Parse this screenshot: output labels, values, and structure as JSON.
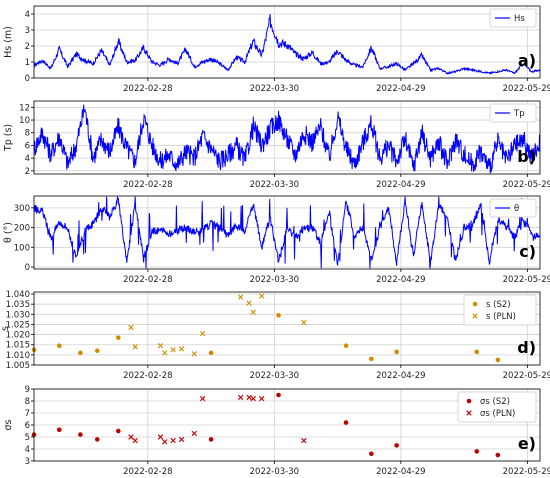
{
  "figure": {
    "colors": {
      "series": "#0000ff",
      "s2": "#d18c00",
      "pln": "#d18c00",
      "sigma_s2": "#c00000",
      "sigma_pln": "#c00000",
      "grid": "#d0d0d0"
    },
    "x_tick_labels": [
      "2022-02-28",
      "2022-03-30",
      "2022-04-29",
      "2022-05-29"
    ]
  },
  "chart_data": [
    {
      "type": "line",
      "panel_label": "a)",
      "ylabel": "Hs (m)",
      "legend": "Hs",
      "legend_placement": "top-right",
      "x_range": [
        "2022-02-01",
        "2022-06-01"
      ],
      "ylim": [
        0,
        4.5
      ],
      "yticks": [
        0,
        1,
        2,
        3,
        4
      ],
      "x": [
        "2022-02-01",
        "2022-02-03",
        "2022-02-05",
        "2022-02-07",
        "2022-02-09",
        "2022-02-11",
        "2022-02-13",
        "2022-02-15",
        "2022-02-17",
        "2022-02-19",
        "2022-02-21",
        "2022-02-23",
        "2022-02-25",
        "2022-02-27",
        "2022-03-01",
        "2022-03-03",
        "2022-03-05",
        "2022-03-07",
        "2022-03-09",
        "2022-03-11",
        "2022-03-13",
        "2022-03-15",
        "2022-03-17",
        "2022-03-19",
        "2022-03-21",
        "2022-03-23",
        "2022-03-25",
        "2022-03-27",
        "2022-03-29",
        "2022-03-31",
        "2022-04-02",
        "2022-04-04",
        "2022-04-06",
        "2022-04-08",
        "2022-04-10",
        "2022-04-12",
        "2022-04-14",
        "2022-04-16",
        "2022-04-18",
        "2022-04-20",
        "2022-04-22",
        "2022-04-24",
        "2022-04-26",
        "2022-04-28",
        "2022-04-30",
        "2022-05-02",
        "2022-05-04",
        "2022-05-06",
        "2022-05-08",
        "2022-05-10",
        "2022-05-12",
        "2022-05-14",
        "2022-05-16",
        "2022-05-18",
        "2022-05-20",
        "2022-05-22",
        "2022-05-24",
        "2022-05-26",
        "2022-05-28",
        "2022-05-30",
        "2022-06-01"
      ],
      "y": [
        0.8,
        1.1,
        0.6,
        1.8,
        0.7,
        1.5,
        1.1,
        0.9,
        1.7,
        0.8,
        2.3,
        1.0,
        1.1,
        1.9,
        1.0,
        0.8,
        1.2,
        0.9,
        1.8,
        0.7,
        1.0,
        1.2,
        0.9,
        0.5,
        1.3,
        1.0,
        2.3,
        1.4,
        3.6,
        2.2,
        2.1,
        1.5,
        1.2,
        1.6,
        0.9,
        1.0,
        1.7,
        1.1,
        0.8,
        0.7,
        1.9,
        0.6,
        0.7,
        0.9,
        0.5,
        0.9,
        1.4,
        0.5,
        0.6,
        0.3,
        0.4,
        0.6,
        0.5,
        0.4,
        0.3,
        0.4,
        0.5,
        0.3,
        0.9,
        0.4,
        0.5
      ]
    },
    {
      "type": "line",
      "panel_label": "b)",
      "ylabel": "Tp (s)",
      "legend": "Tp",
      "legend_placement": "top-right",
      "x_range": [
        "2022-02-01",
        "2022-06-01"
      ],
      "ylim": [
        1.5,
        13
      ],
      "yticks": [
        2,
        4,
        6,
        8,
        10,
        12
      ],
      "x": [
        "2022-02-01",
        "2022-02-03",
        "2022-02-05",
        "2022-02-07",
        "2022-02-09",
        "2022-02-11",
        "2022-02-13",
        "2022-02-15",
        "2022-02-17",
        "2022-02-19",
        "2022-02-21",
        "2022-02-23",
        "2022-02-25",
        "2022-02-27",
        "2022-03-01",
        "2022-03-03",
        "2022-03-05",
        "2022-03-07",
        "2022-03-09",
        "2022-03-11",
        "2022-03-13",
        "2022-03-15",
        "2022-03-17",
        "2022-03-19",
        "2022-03-21",
        "2022-03-23",
        "2022-03-25",
        "2022-03-27",
        "2022-03-29",
        "2022-03-31",
        "2022-04-02",
        "2022-04-04",
        "2022-04-06",
        "2022-04-08",
        "2022-04-10",
        "2022-04-12",
        "2022-04-14",
        "2022-04-16",
        "2022-04-18",
        "2022-04-20",
        "2022-04-22",
        "2022-04-24",
        "2022-04-26",
        "2022-04-28",
        "2022-04-30",
        "2022-05-02",
        "2022-05-04",
        "2022-05-06",
        "2022-05-08",
        "2022-05-10",
        "2022-05-12",
        "2022-05-14",
        "2022-05-16",
        "2022-05-18",
        "2022-05-20",
        "2022-05-22",
        "2022-05-24",
        "2022-05-26",
        "2022-05-28",
        "2022-05-30",
        "2022-06-01"
      ],
      "y": [
        5.5,
        8.0,
        4.5,
        7.5,
        3.0,
        6.0,
        12.0,
        4.0,
        7.0,
        5.0,
        9.0,
        5.5,
        3.5,
        10.5,
        6.0,
        3.5,
        4.5,
        3.0,
        5.0,
        4.0,
        7.5,
        5.5,
        3.5,
        4.5,
        6.0,
        3.5,
        9.0,
        6.0,
        8.5,
        10.0,
        7.0,
        4.5,
        8.0,
        6.5,
        9.0,
        4.0,
        10.5,
        5.5,
        3.0,
        6.5,
        9.5,
        4.0,
        6.0,
        3.5,
        7.0,
        2.5,
        8.0,
        4.0,
        6.5,
        3.0,
        7.0,
        4.5,
        3.0,
        5.0,
        2.5,
        6.5,
        3.5,
        6.0,
        7.0,
        4.0,
        6.5
      ]
    },
    {
      "type": "line",
      "panel_label": "c)",
      "ylabel": "θ (°)",
      "legend": "θ",
      "legend_placement": "top-right",
      "x_range": [
        "2022-02-01",
        "2022-06-01"
      ],
      "ylim": [
        -10,
        360
      ],
      "yticks": [
        0,
        100,
        200,
        300
      ],
      "x": [
        "2022-02-01",
        "2022-02-03",
        "2022-02-05",
        "2022-02-07",
        "2022-02-09",
        "2022-02-11",
        "2022-02-13",
        "2022-02-15",
        "2022-02-17",
        "2022-02-19",
        "2022-02-21",
        "2022-02-23",
        "2022-02-25",
        "2022-02-27",
        "2022-03-01",
        "2022-03-03",
        "2022-03-05",
        "2022-03-07",
        "2022-03-09",
        "2022-03-11",
        "2022-03-13",
        "2022-03-15",
        "2022-03-17",
        "2022-03-19",
        "2022-03-21",
        "2022-03-23",
        "2022-03-25",
        "2022-03-27",
        "2022-03-29",
        "2022-03-31",
        "2022-04-02",
        "2022-04-04",
        "2022-04-06",
        "2022-04-08",
        "2022-04-10",
        "2022-04-12",
        "2022-04-14",
        "2022-04-16",
        "2022-04-18",
        "2022-04-20",
        "2022-04-22",
        "2022-04-24",
        "2022-04-26",
        "2022-04-28",
        "2022-04-30",
        "2022-05-02",
        "2022-05-04",
        "2022-05-06",
        "2022-05-08",
        "2022-05-10",
        "2022-05-12",
        "2022-05-14",
        "2022-05-16",
        "2022-05-18",
        "2022-05-20",
        "2022-05-22",
        "2022-05-24",
        "2022-05-26",
        "2022-05-28",
        "2022-05-30",
        "2022-06-01"
      ],
      "y": [
        300,
        280,
        150,
        230,
        200,
        40,
        180,
        220,
        300,
        250,
        340,
        20,
        320,
        40,
        180,
        190,
        170,
        185,
        200,
        180,
        190,
        220,
        200,
        160,
        210,
        180,
        320,
        100,
        250,
        30,
        200,
        150,
        190,
        200,
        120,
        280,
        10,
        330,
        160,
        200,
        40,
        190,
        300,
        20,
        340,
        60,
        330,
        20,
        320,
        240,
        30,
        200,
        220,
        310,
        20,
        240,
        200,
        150,
        230,
        180,
        140
      ]
    },
    {
      "type": "scatter",
      "panel_label": "d)",
      "ylabel": "s",
      "legend_placement": "top-right",
      "x_range": [
        "2022-02-01",
        "2022-06-01"
      ],
      "ylim": [
        1.005,
        1.041
      ],
      "yticks": [
        1.005,
        1.01,
        1.015,
        1.02,
        1.025,
        1.03,
        1.035,
        1.04
      ],
      "ytick_labels": [
        "1.005",
        "1.010",
        "1.015",
        "1.020",
        "1.025",
        "1.030",
        "1.035",
        "1.040"
      ],
      "series": [
        {
          "name": "s (S2)",
          "marker": "circle",
          "x": [
            "2022-02-01",
            "2022-02-07",
            "2022-02-12",
            "2022-02-16",
            "2022-02-21",
            "2022-03-15",
            "2022-03-31",
            "2022-04-16",
            "2022-04-22",
            "2022-04-28",
            "2022-05-17",
            "2022-05-22"
          ],
          "y": [
            1.0125,
            1.0145,
            1.011,
            1.012,
            1.0185,
            1.011,
            1.0295,
            1.0145,
            1.008,
            1.0115,
            1.0115,
            1.0075
          ]
        },
        {
          "name": "s (PLN)",
          "marker": "x",
          "x": [
            "2022-02-24",
            "2022-02-25",
            "2022-03-03",
            "2022-03-04",
            "2022-03-06",
            "2022-03-08",
            "2022-03-11",
            "2022-03-13",
            "2022-03-22",
            "2022-03-24",
            "2022-03-25",
            "2022-03-27",
            "2022-04-06"
          ],
          "y": [
            1.0235,
            1.014,
            1.0145,
            1.011,
            1.0125,
            1.013,
            1.0105,
            1.0205,
            1.0385,
            1.0355,
            1.031,
            1.039,
            1.026
          ]
        }
      ]
    },
    {
      "type": "scatter",
      "panel_label": "e)",
      "ylabel": "σs",
      "legend_placement": "top-right",
      "x_range": [
        "2022-02-01",
        "2022-06-01"
      ],
      "ylim": [
        3,
        9
      ],
      "yticks": [
        3,
        4,
        5,
        6,
        7,
        8,
        9
      ],
      "series": [
        {
          "name": "σs (S2)",
          "marker": "circle",
          "x": [
            "2022-02-01",
            "2022-02-07",
            "2022-02-12",
            "2022-02-16",
            "2022-02-21",
            "2022-03-15",
            "2022-03-31",
            "2022-04-16",
            "2022-04-22",
            "2022-04-28",
            "2022-05-17",
            "2022-05-22"
          ],
          "y": [
            5.2,
            5.6,
            5.2,
            4.8,
            5.5,
            4.8,
            8.5,
            6.2,
            3.6,
            4.3,
            3.8,
            3.5
          ]
        },
        {
          "name": "σs (PLN)",
          "marker": "x",
          "x": [
            "2022-02-24",
            "2022-02-25",
            "2022-03-03",
            "2022-03-04",
            "2022-03-06",
            "2022-03-08",
            "2022-03-11",
            "2022-03-13",
            "2022-03-22",
            "2022-03-24",
            "2022-03-25",
            "2022-03-27",
            "2022-04-06"
          ],
          "y": [
            5.0,
            4.7,
            5.0,
            4.6,
            4.7,
            4.8,
            5.3,
            8.2,
            8.3,
            8.3,
            8.2,
            8.2,
            4.7
          ]
        }
      ]
    }
  ]
}
